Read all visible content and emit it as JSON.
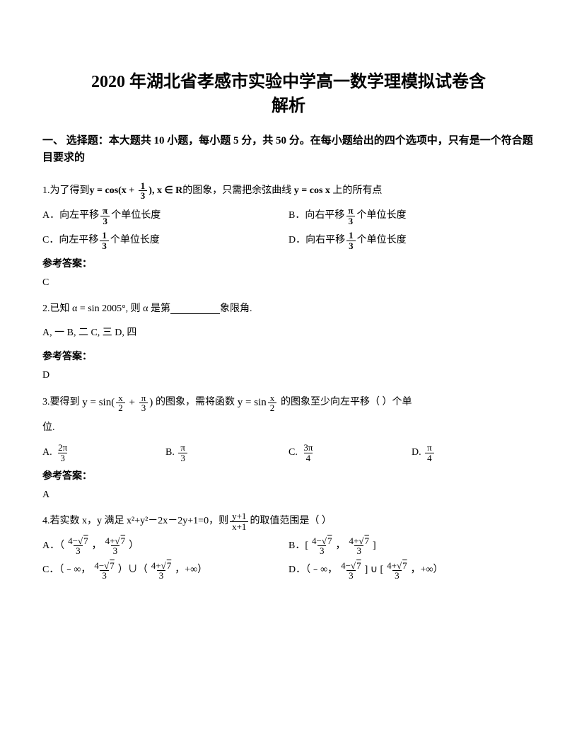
{
  "title_line1": "2020 年湖北省孝感市实验中学高一数学理模拟试卷含",
  "title_line2": "解析",
  "section_desc": "一、 选择题：本大题共 10 小题，每小题 5 分，共 50 分。在每小题给出的四个选项中，只有是一个符合题目要求的",
  "q1": {
    "num": "1.",
    "pre": "为了得到",
    "eq": "y = cos(x + 1/3), x ∈ R",
    "mid": "的图象，只需把余弦曲线",
    "eq2": "y = cos x",
    "post": "上的所有点",
    "opts": {
      "A": "A．向左平移",
      "A_post": "个单位长度",
      "B": "B．向右平移",
      "B_post": "个单位长度",
      "C": "C．向左平移",
      "C_post": "个单位长度",
      "D": "D．向右平移",
      "D_post": "个单位长度"
    }
  },
  "ans_label": "参考答案：",
  "q1_ans": "C",
  "q2": {
    "num": "2.",
    "pre": "已知",
    "eq": "α = sin 2005°",
    "mid": ", 则",
    "a": "α",
    "post": "是第",
    "post2": "象限角.",
    "opts": "A, 一   B, 二   C, 三   D, 四"
  },
  "q2_ans": "D",
  "q3": {
    "num": "3.",
    "pre": "要得到",
    "mid": "的图象，需将函数",
    "post1": "的图象至少向左平移（    ）个单",
    "post2": "位.",
    "A": "A.",
    "B": "B.",
    "C": "C.",
    "D": "D."
  },
  "q3_ans": "A",
  "q4": {
    "num": "4.",
    "pre": "若实数 x，y 满足 x²+y²－2x－2y+1=0，则",
    "post": "的取值范围是（    ）",
    "optA_pre": "A．（",
    "optA_mid": "，",
    "optA_post": "）",
    "optB_pre": "B．[",
    "optB_mid": "，",
    "optB_post": "]",
    "optC_pre": "C．（﹣∞，",
    "optC_mid1": "）∪（",
    "optC_mid2": "，+∞）",
    "optD_pre": "D．（﹣∞，",
    "optD_mid1": "] ∪ [",
    "optD_mid2": "，+∞）"
  }
}
